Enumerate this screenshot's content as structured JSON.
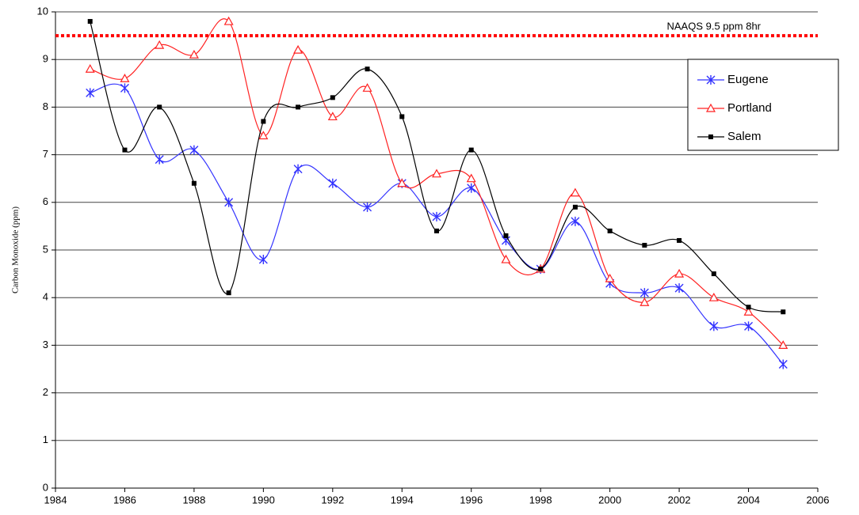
{
  "chart_data": {
    "type": "line",
    "y_label": "Carbon Monoxide (ppm)",
    "x": [
      1985,
      1986,
      1987,
      1988,
      1989,
      1990,
      1991,
      1992,
      1993,
      1994,
      1995,
      1996,
      1997,
      1998,
      1999,
      2000,
      2001,
      2002,
      2003,
      2004,
      2005
    ],
    "series": [
      {
        "name": "Eugene",
        "color": "#3333ff",
        "marker": "asterisk",
        "values": [
          8.3,
          8.4,
          6.9,
          7.1,
          6.0,
          4.8,
          6.7,
          6.4,
          5.9,
          6.4,
          5.7,
          6.3,
          5.2,
          4.6,
          5.6,
          4.3,
          4.1,
          4.2,
          3.4,
          3.4,
          2.6
        ]
      },
      {
        "name": "Portland",
        "color": "#ff2222",
        "marker": "triangle",
        "values": [
          8.8,
          8.6,
          9.3,
          9.1,
          9.8,
          7.4,
          9.2,
          7.8,
          8.4,
          6.4,
          6.6,
          6.5,
          4.8,
          4.6,
          6.2,
          4.4,
          3.9,
          4.5,
          4.0,
          3.7,
          3.0
        ]
      },
      {
        "name": "Salem",
        "color": "#000000",
        "marker": "square",
        "values": [
          9.8,
          7.1,
          8.0,
          6.4,
          4.1,
          7.7,
          8.0,
          8.2,
          8.8,
          7.8,
          5.4,
          7.1,
          5.3,
          4.6,
          5.9,
          5.4,
          5.1,
          5.2,
          4.5,
          3.8,
          3.7
        ]
      }
    ],
    "reference_line": {
      "value": 9.5,
      "label": "NAAQS  9.5 ppm 8hr",
      "color": "#ff0000"
    },
    "xlim": [
      1984,
      2006
    ],
    "xticks": [
      1984,
      1986,
      1988,
      1990,
      1992,
      1994,
      1996,
      1998,
      2000,
      2002,
      2004,
      2006
    ],
    "ylim": [
      0,
      10
    ],
    "yticks": [
      0,
      1,
      2,
      3,
      4,
      5,
      6,
      7,
      8,
      9,
      10
    ],
    "grid": true,
    "legend": "upper right",
    "smooth": true
  }
}
